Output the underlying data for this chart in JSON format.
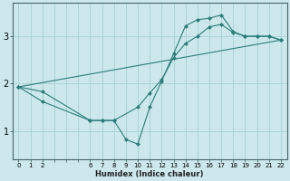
{
  "xlabel": "Humidex (Indice chaleur)",
  "bg_color": "#cce8ec",
  "line_color": "#2d7d7a",
  "grid_color": "#aad4d8",
  "xlim": [
    -0.5,
    22.5
  ],
  "ylim": [
    0.4,
    3.7
  ],
  "xticks_all": [
    0,
    1,
    2,
    3,
    4,
    5,
    6,
    7,
    8,
    9,
    10,
    11,
    12,
    13,
    14,
    15,
    16,
    17,
    18,
    19,
    20,
    21,
    22
  ],
  "xtick_labels_show": [
    0,
    1,
    2,
    6,
    7,
    8,
    9,
    10,
    11,
    12,
    13,
    14,
    15,
    16,
    17,
    18,
    19,
    20,
    21,
    22
  ],
  "yticks": [
    1,
    2,
    3
  ],
  "line1": {
    "comment": "main line with dip: starts at (0,1.93), goes to (2,1.83), dips through (6,1.22),(7,1.22),(8,1.22),(9,0.82),(10,0.72), then rises: (11,1.5),(12,2.05),(13,2.63),(14,3.22),(15,3.35),(16,3.38),(17,3.45),(18,3.1),(19,3.0),(20,3.0),(21,3.0),(22,2.92)",
    "x": [
      0,
      2,
      6,
      7,
      8,
      9,
      10,
      11,
      12,
      13,
      14,
      15,
      16,
      17,
      18,
      19,
      20,
      21,
      22
    ],
    "y": [
      1.93,
      1.83,
      1.22,
      1.22,
      1.22,
      0.82,
      0.72,
      1.5,
      2.05,
      2.63,
      3.22,
      3.35,
      3.38,
      3.45,
      3.1,
      3.0,
      3.0,
      3.0,
      2.92
    ]
  },
  "line2": {
    "comment": "second line: starts at (0,1.93), (2,1.62), dips: (6,1.22),(7,1.22),(8,1.22), rises: (10,1.5),(11,1.8),(12,2.08),(13,2.55),(14,2.85),(15,3.0),(16,3.2),(17,3.25),(18,3.08),(19,3.0),(20,3.0),(21,3.0),(22,2.92)",
    "x": [
      0,
      2,
      6,
      7,
      8,
      10,
      11,
      12,
      13,
      14,
      15,
      16,
      17,
      18,
      19,
      20,
      21,
      22
    ],
    "y": [
      1.93,
      1.62,
      1.22,
      1.22,
      1.22,
      1.5,
      1.8,
      2.08,
      2.55,
      2.85,
      3.0,
      3.2,
      3.25,
      3.08,
      3.0,
      3.0,
      3.0,
      2.92
    ]
  },
  "line3": {
    "x": [
      0,
      22
    ],
    "y": [
      1.93,
      2.92
    ]
  }
}
